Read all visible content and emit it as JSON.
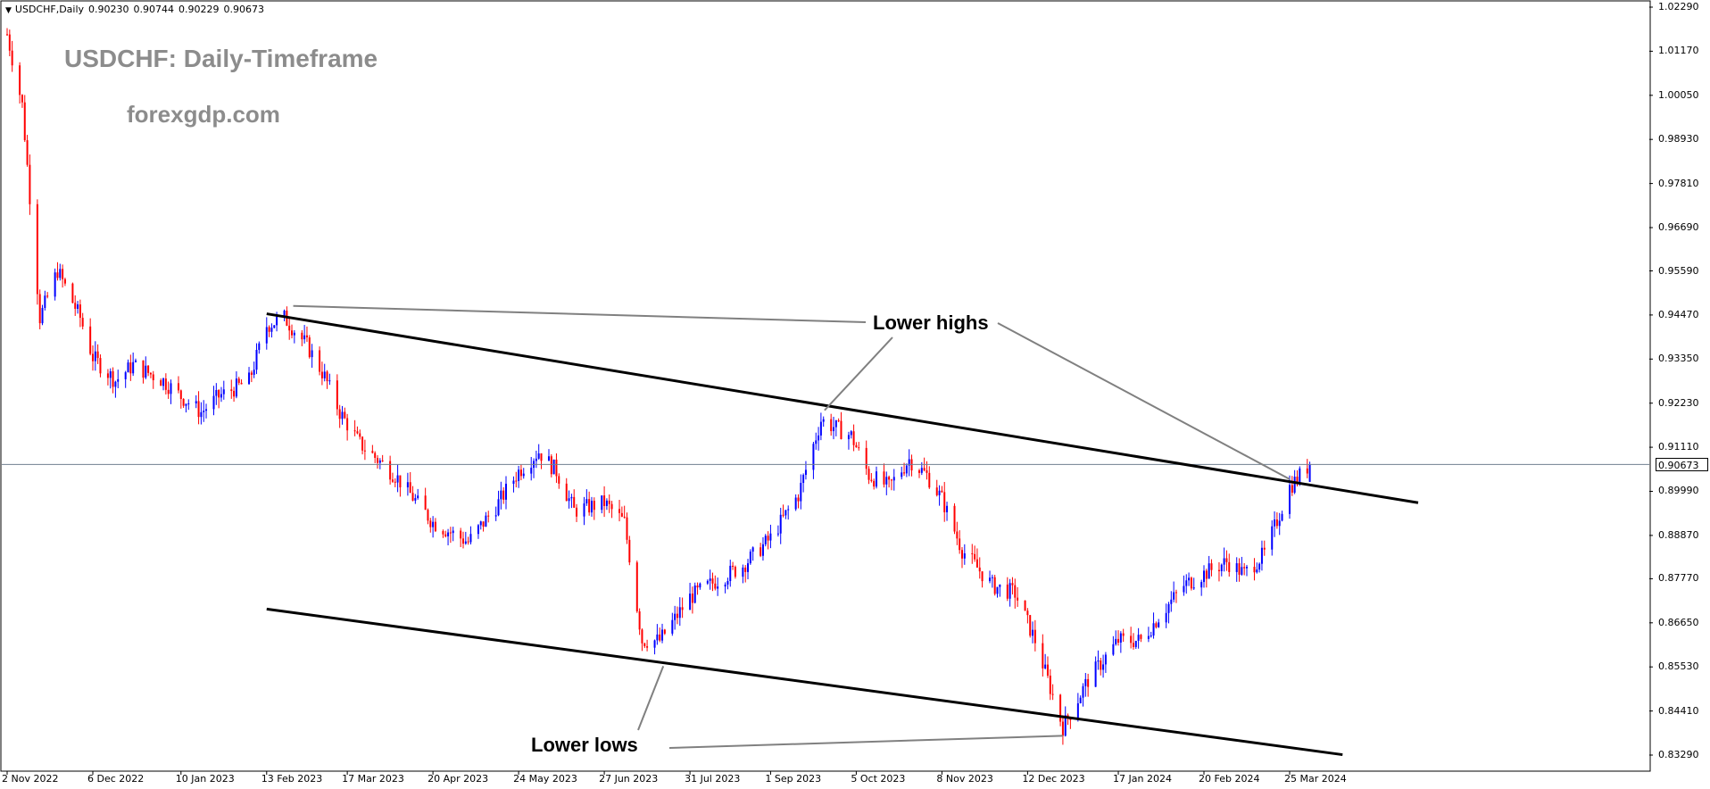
{
  "header": {
    "symbol_label": "USDCHF,Daily",
    "open": "0.90230",
    "high": "0.90744",
    "low": "0.90229",
    "close": "0.90673"
  },
  "overlay": {
    "title": "USDCHF: Daily-Timeframe",
    "site": "forexgdp.com",
    "annotation_highs": "Lower highs",
    "annotation_lows": "Lower lows"
  },
  "current_price_label": "0.90673",
  "colors": {
    "bull": "#0000ff",
    "bear": "#ff0000",
    "trendline": "#000000",
    "annotation_line": "#808080",
    "price_line": "#708090",
    "text_gray": "#8c8c8c"
  },
  "chart_data": {
    "type": "candlestick",
    "symbol": "USDCHF",
    "timeframe": "Daily",
    "ylim": [
      0.8329,
      1.0229
    ],
    "y_ticks": [
      "1.02290",
      "1.01170",
      "1.00050",
      "0.98930",
      "0.97810",
      "0.96690",
      "0.95590",
      "0.94470",
      "0.93350",
      "0.92230",
      "0.91110",
      "0.89990",
      "0.88870",
      "0.87770",
      "0.86650",
      "0.85530",
      "0.84410",
      "0.83290"
    ],
    "x_ticks": [
      "2 Nov 2022",
      "6 Dec 2022",
      "10 Jan 2023",
      "13 Feb 2023",
      "17 Mar 2023",
      "20 Apr 2023",
      "24 May 2023",
      "27 Jun 2023",
      "31 Jul 2023",
      "1 Sep 2023",
      "5 Oct 2023",
      "8 Nov 2023",
      "12 Dec 2023",
      "17 Jan 2024",
      "20 Feb 2024",
      "25 Mar 2024"
    ],
    "current_price": 0.90673,
    "price_path": [
      [
        "2022-11-02",
        1.016
      ],
      [
        "2022-11-08",
        0.998
      ],
      [
        "2022-11-15",
        0.944
      ],
      [
        "2022-11-22",
        0.956
      ],
      [
        "2022-12-01",
        0.944
      ],
      [
        "2022-12-06",
        0.934
      ],
      [
        "2022-12-15",
        0.928
      ],
      [
        "2022-12-22",
        0.932
      ],
      [
        "2023-01-03",
        0.928
      ],
      [
        "2023-01-10",
        0.924
      ],
      [
        "2023-01-18",
        0.92
      ],
      [
        "2023-01-25",
        0.924
      ],
      [
        "2023-02-06",
        0.928
      ],
      [
        "2023-02-13",
        0.942
      ],
      [
        "2023-02-20",
        0.944
      ],
      [
        "2023-03-01",
        0.937
      ],
      [
        "2023-03-08",
        0.929
      ],
      [
        "2023-03-14",
        0.92
      ],
      [
        "2023-03-22",
        0.912
      ],
      [
        "2023-04-05",
        0.904
      ],
      [
        "2023-04-20",
        0.892
      ],
      [
        "2023-05-04",
        0.887
      ],
      [
        "2023-05-15",
        0.896
      ],
      [
        "2023-05-24",
        0.905
      ],
      [
        "2023-06-01",
        0.91
      ],
      [
        "2023-06-08",
        0.905
      ],
      [
        "2023-06-15",
        0.895
      ],
      [
        "2023-06-27",
        0.897
      ],
      [
        "2023-07-05",
        0.892
      ],
      [
        "2023-07-12",
        0.862
      ],
      [
        "2023-07-19",
        0.862
      ],
      [
        "2023-07-31",
        0.873
      ],
      [
        "2023-08-10",
        0.877
      ],
      [
        "2023-08-21",
        0.881
      ],
      [
        "2023-09-01",
        0.888
      ],
      [
        "2023-09-12",
        0.899
      ],
      [
        "2023-09-21",
        0.918
      ],
      [
        "2023-10-03",
        0.914
      ],
      [
        "2023-10-10",
        0.904
      ],
      [
        "2023-10-18",
        0.901
      ],
      [
        "2023-10-26",
        0.908
      ],
      [
        "2023-11-02",
        0.904
      ],
      [
        "2023-11-08",
        0.898
      ],
      [
        "2023-11-16",
        0.885
      ],
      [
        "2023-11-28",
        0.876
      ],
      [
        "2023-12-07",
        0.874
      ],
      [
        "2023-12-15",
        0.862
      ],
      [
        "2023-12-26",
        0.84
      ],
      [
        "2024-01-05",
        0.852
      ],
      [
        "2024-01-17",
        0.862
      ],
      [
        "2024-01-26",
        0.862
      ],
      [
        "2024-02-02",
        0.868
      ],
      [
        "2024-02-12",
        0.876
      ],
      [
        "2024-02-20",
        0.879
      ],
      [
        "2024-02-29",
        0.882
      ],
      [
        "2024-03-07",
        0.879
      ],
      [
        "2024-03-15",
        0.884
      ],
      [
        "2024-03-25",
        0.901
      ],
      [
        "2024-04-02",
        0.9067
      ]
    ],
    "trendlines": [
      {
        "name": "upper",
        "from": [
          "2023-02-13",
          0.945
        ],
        "to": [
          "2024-05-15",
          0.897
        ]
      },
      {
        "name": "lower",
        "from": [
          "2023-02-13",
          0.87
        ],
        "to": [
          "2024-04-15",
          0.833
        ]
      }
    ]
  }
}
